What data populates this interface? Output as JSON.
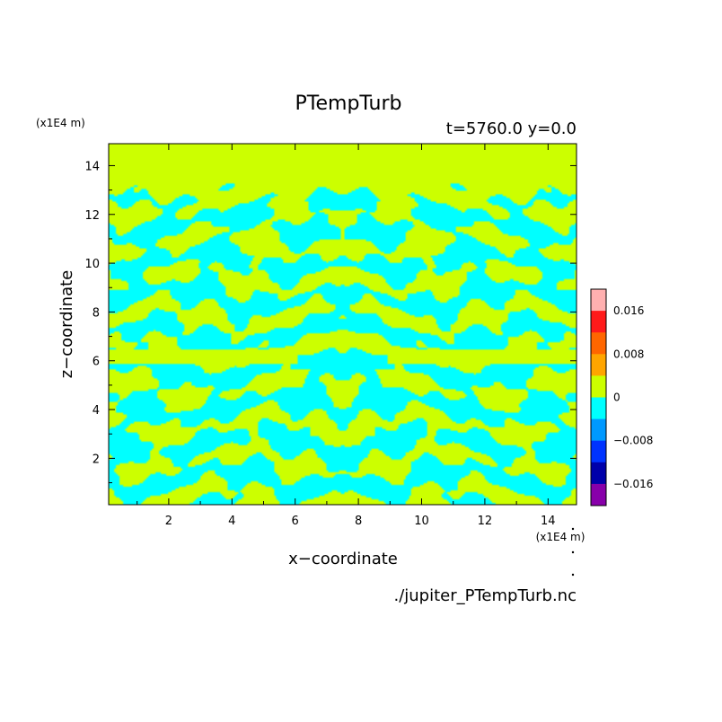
{
  "chart_data": {
    "type": "heatmap",
    "title": "PTempTurb",
    "subtitle": "t=5760.0 y=0.0",
    "xlabel": "x−coordinate",
    "ylabel": "z−coordinate",
    "x_unit": "(x1E4 m)",
    "z_unit": "(x1E4 m)",
    "source": "./jupiter_PTempTurb.nc",
    "xlim": [
      0.1,
      14.9
    ],
    "ylim": [
      0.1,
      14.9
    ],
    "x_ticks": [
      "2",
      "4",
      "6",
      "8",
      "10",
      "12",
      "14"
    ],
    "x_tick_values": [
      2,
      4,
      6,
      8,
      10,
      12,
      14
    ],
    "y_ticks": [
      "2",
      "4",
      "6",
      "8",
      "10",
      "12",
      "14"
    ],
    "y_tick_values": [
      2,
      4,
      6,
      8,
      10,
      12,
      14
    ],
    "colorbar": {
      "ticks": [
        "0.016",
        "0.008",
        "0",
        "−0.008",
        "−0.016"
      ],
      "tick_values": [
        0.016,
        0.008,
        0,
        -0.008,
        -0.016
      ],
      "levels": [
        0.02,
        0.016,
        0.012,
        0.008,
        0.004,
        0,
        -0.004,
        -0.008,
        -0.012,
        -0.016,
        -0.02
      ],
      "colors": [
        "#ffb0b0",
        "#ff1a1a",
        "#ff6600",
        "#ffa500",
        "#ccff00",
        "#00ffff",
        "#0099ff",
        "#0033ff",
        "#0000aa",
        "#8800aa"
      ]
    },
    "field_description_values": {
      "positive_band_color": "#ccff00",
      "negative_band_color": "#00ffff",
      "uniform_top_z_above": 12.8,
      "uniform_band_z": [
        5.9,
        6.5
      ]
    }
  }
}
